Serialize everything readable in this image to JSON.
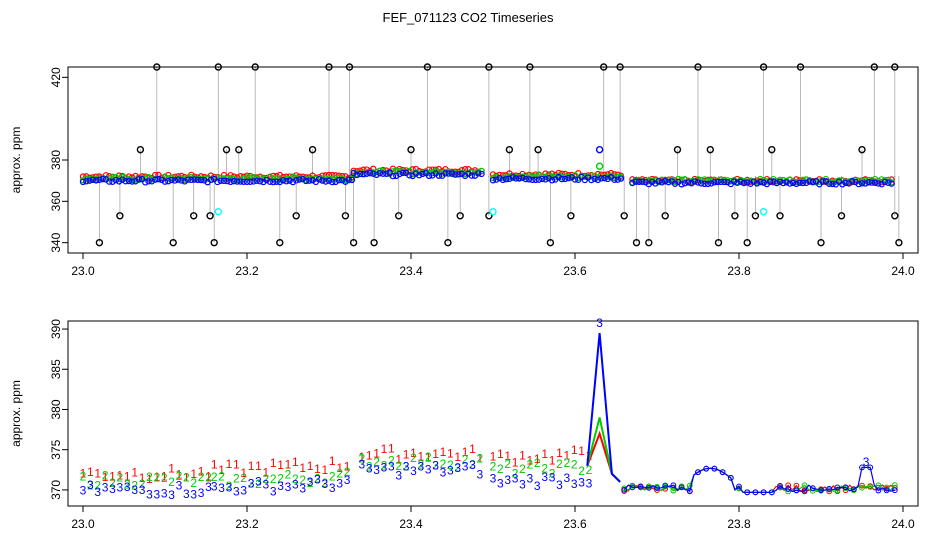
{
  "title": "FEF_071123  CO2 Timeseries",
  "colors": {
    "series1": "#ff0000",
    "series2": "#00cc00",
    "series3": "#0000ff",
    "markers": "#000000",
    "flagged": "#00ffff",
    "frame": "#000000",
    "droplines": "#555555"
  },
  "chart_data": [
    {
      "type": "scatter",
      "ylabel": "approx. ppm",
      "xlabel": "",
      "xlim": [
        23.0,
        24.0
      ],
      "ylim": [
        335,
        425
      ],
      "x_ticks": [
        "23.0",
        "23.2",
        "23.4",
        "23.6",
        "23.8",
        "24.0"
      ],
      "y_ticks": [
        "340",
        "360",
        "380",
        "420"
      ],
      "grid": false,
      "series": [
        {
          "color_key": "series1",
          "values_description_shown": "",
          "segments": [
            [
              23.0,
              23.16,
              372
            ],
            [
              23.16,
              23.33,
              372
            ],
            [
              23.33,
              23.49,
              375
            ],
            [
              23.5,
              23.66,
              373
            ],
            [
              23.67,
              23.99,
              370
            ]
          ]
        },
        {
          "color_key": "series2",
          "segments": [
            [
              23.0,
              23.16,
              371
            ],
            [
              23.16,
              23.33,
              371
            ],
            [
              23.33,
              23.49,
              374
            ],
            [
              23.5,
              23.66,
              372
            ],
            [
              23.67,
              23.99,
              370
            ]
          ]
        },
        {
          "color_key": "series3",
          "segments": [
            [
              23.0,
              23.16,
              370
            ],
            [
              23.16,
              23.33,
              370
            ],
            [
              23.33,
              23.49,
              373
            ],
            [
              23.5,
              23.66,
              371
            ],
            [
              23.67,
              23.99,
              369
            ]
          ]
        }
      ],
      "flagged_high": [
        23.09,
        23.165,
        23.21,
        23.3,
        23.325,
        23.42,
        23.495,
        23.545,
        23.635,
        23.655,
        23.75,
        23.83,
        23.875,
        23.965,
        23.99
      ],
      "flagged_mid_up": [
        23.07,
        23.175,
        23.19,
        23.28,
        23.4,
        23.52,
        23.555,
        23.725,
        23.765,
        23.84,
        23.95
      ],
      "flagged_low": [
        23.02,
        23.045,
        23.11,
        23.135,
        23.155,
        23.16,
        23.24,
        23.26,
        23.32,
        23.33,
        23.355,
        23.385,
        23.445,
        23.46,
        23.495,
        23.57,
        23.595,
        23.66,
        23.675,
        23.69,
        23.71,
        23.775,
        23.795,
        23.81,
        23.82,
        23.85,
        23.9,
        23.925,
        23.99,
        23.995
      ],
      "flagged_low_values": [
        340,
        353,
        340,
        353,
        353,
        340,
        340,
        353,
        353,
        340,
        340,
        353,
        340,
        353,
        353,
        340,
        353,
        353,
        340,
        340,
        353,
        340,
        353,
        340,
        353,
        353,
        340,
        353,
        353,
        340
      ],
      "cyan_points": [
        [
          23.165,
          355
        ],
        [
          23.5,
          355
        ],
        [
          23.83,
          355
        ]
      ],
      "blue_spike": [
        23.63,
        385
      ],
      "green_spike": [
        23.63,
        377
      ]
    },
    {
      "type": "scatter",
      "ylabel": "approx. ppm",
      "xlabel": "",
      "xlim": [
        23.0,
        24.0
      ],
      "ylim": [
        368,
        391
      ],
      "x_ticks": [
        "23.0",
        "23.2",
        "23.4",
        "23.6",
        "23.8",
        "24.0"
      ],
      "y_ticks": [
        "370",
        "375",
        "380",
        "385",
        "390"
      ],
      "grid": false,
      "point_labels": [
        "1",
        "2",
        "3"
      ],
      "series": [
        {
          "name_shown": "",
          "color_key": "series1",
          "label": "1"
        },
        {
          "color_key": "series2",
          "label": "2"
        },
        {
          "color_key": "series3",
          "label": "3"
        }
      ],
      "blue_peak": [
        23.63,
        389.5
      ],
      "blue_peak2": [
        23.955,
        373.0
      ]
    }
  ]
}
